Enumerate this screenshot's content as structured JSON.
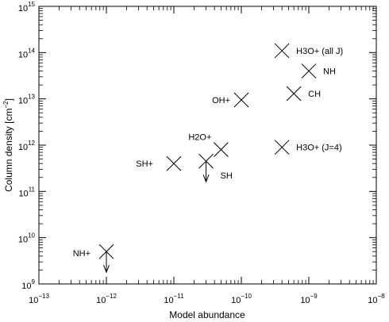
{
  "chart_data": {
    "type": "scatter",
    "title": "",
    "xlabel": "Model abundance",
    "ylabel": "Column density [cm",
    "ylabel_sup": "−2",
    "ylabel_close": "]",
    "x_scale": "log",
    "y_scale": "log",
    "xlim": [
      1e-13,
      1e-08
    ],
    "ylim": [
      1000000000.0,
      1000000000000000.0
    ],
    "grid": false,
    "x_ticks": [
      {
        "base": "10",
        "exp": "−13",
        "value": 1e-13
      },
      {
        "base": "10",
        "exp": "−12",
        "value": 1e-12
      },
      {
        "base": "10",
        "exp": "−11",
        "value": 1e-11
      },
      {
        "base": "10",
        "exp": "−10",
        "value": 1e-10
      },
      {
        "base": "10",
        "exp": "−9",
        "value": 1e-09
      },
      {
        "base": "10",
        "exp": "−8",
        "value": 1e-08
      }
    ],
    "y_ticks": [
      {
        "base": "10",
        "exp": "9",
        "value": 1000000000.0
      },
      {
        "base": "10",
        "exp": "10",
        "value": 10000000000.0
      },
      {
        "base": "10",
        "exp": "11",
        "value": 100000000000.0
      },
      {
        "base": "10",
        "exp": "12",
        "value": 1000000000000.0
      },
      {
        "base": "10",
        "exp": "13",
        "value": 10000000000000.0
      },
      {
        "base": "10",
        "exp": "14",
        "value": 100000000000000.0
      },
      {
        "base": "10",
        "exp": "15",
        "value": 1000000000000000.0
      }
    ],
    "points": [
      {
        "label": "H3O+ (all J)",
        "x": 4e-10,
        "y": 110000000000000.0,
        "upper_limit": false
      },
      {
        "label": "NH",
        "x": 1e-09,
        "y": 40000000000000.0,
        "upper_limit": false
      },
      {
        "label": "OH+",
        "x": 1e-10,
        "y": 9500000000000.0,
        "upper_limit": false
      },
      {
        "label": "CH",
        "x": 6e-10,
        "y": 13000000000000.0,
        "upper_limit": false
      },
      {
        "label": "H3O+ (J=4)",
        "x": 4e-10,
        "y": 900000000000.0,
        "upper_limit": false
      },
      {
        "label": "H2O+",
        "x": 5e-11,
        "y": 800000000000.0,
        "upper_limit": false
      },
      {
        "label": "SH+",
        "x": 1e-11,
        "y": 400000000000.0,
        "upper_limit": false
      },
      {
        "label": "SH",
        "x": 3e-11,
        "y": 450000000000.0,
        "upper_limit": true
      },
      {
        "label": "NH+",
        "x": 1e-12,
        "y": 5000000000.0,
        "upper_limit": true
      }
    ]
  }
}
